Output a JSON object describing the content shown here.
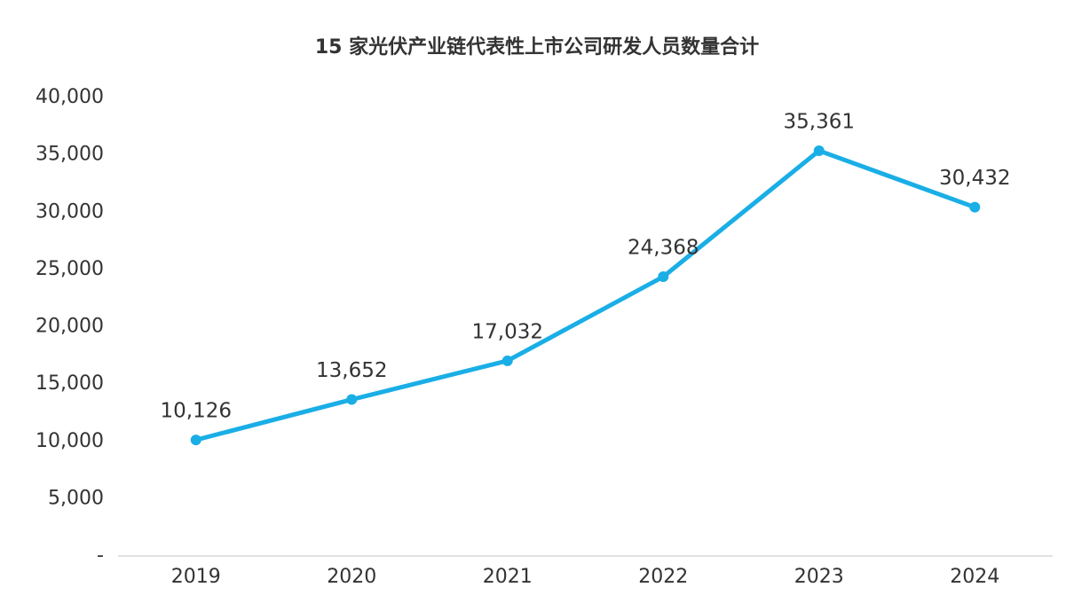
{
  "chart_data": {
    "type": "line",
    "title": "15 家光伏产业链代表性上市公司研发人员数量合计",
    "categories": [
      "2019",
      "2020",
      "2021",
      "2022",
      "2023",
      "2024"
    ],
    "series": [
      {
        "color": "#1aaee6",
        "values": [
          10126,
          13652,
          17032,
          24368,
          35361,
          30432
        ],
        "value_labels": [
          "10,126",
          "13,652",
          "17,032",
          "24,368",
          "35,361",
          "30,432"
        ]
      }
    ],
    "ylim": [
      0,
      40000
    ],
    "yticks": [
      {
        "value": 0,
        "label": "-"
      },
      {
        "value": 5000,
        "label": "5,000"
      },
      {
        "value": 10000,
        "label": "10,000"
      },
      {
        "value": 15000,
        "label": "15,000"
      },
      {
        "value": 20000,
        "label": "20,000"
      },
      {
        "value": 25000,
        "label": "25,000"
      },
      {
        "value": 30000,
        "label": "30,000"
      },
      {
        "value": 35000,
        "label": "35,000"
      },
      {
        "value": 40000,
        "label": "40,000"
      }
    ],
    "grid": false
  }
}
